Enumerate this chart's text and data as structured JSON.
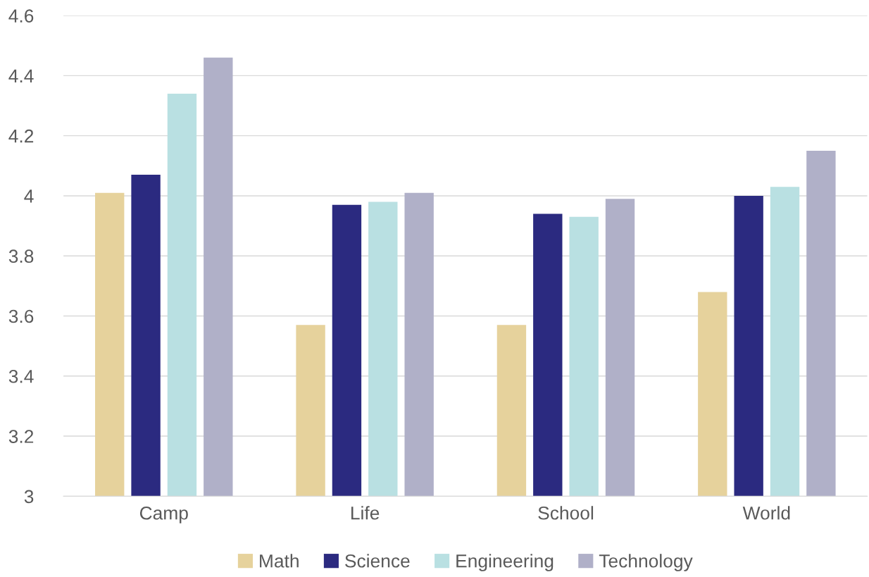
{
  "chart_data": {
    "type": "bar",
    "categories": [
      "Camp",
      "Life",
      "School",
      "World"
    ],
    "series": [
      {
        "name": "Math",
        "color": "#e6d29c",
        "values": [
          4.01,
          3.57,
          3.57,
          3.68
        ]
      },
      {
        "name": "Science",
        "color": "#2b2a80",
        "values": [
          4.07,
          3.97,
          3.94,
          4.0
        ]
      },
      {
        "name": "Engineering",
        "color": "#b9e0e2",
        "values": [
          4.34,
          3.98,
          3.93,
          4.03
        ]
      },
      {
        "name": "Technology",
        "color": "#b0b0c8",
        "values": [
          4.46,
          4.01,
          3.99,
          4.15
        ]
      }
    ],
    "ylim": [
      3,
      4.6
    ],
    "yticks": [
      3,
      3.2,
      3.4,
      3.6,
      3.8,
      4,
      4.2,
      4.4,
      4.6
    ],
    "grid": "y",
    "legend": "bottom"
  }
}
